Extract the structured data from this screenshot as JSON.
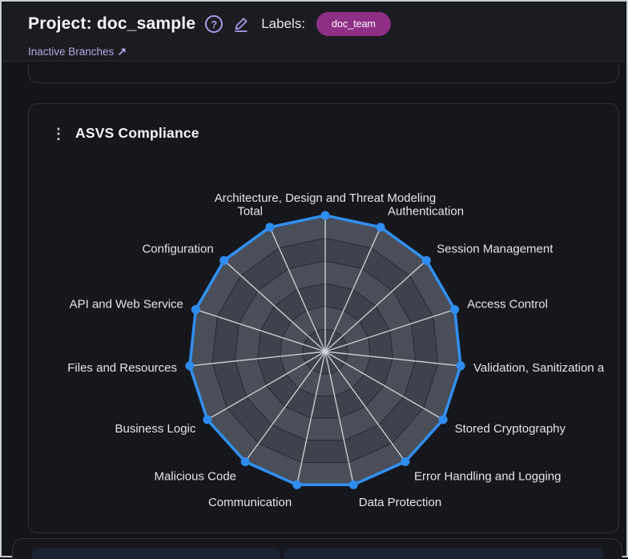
{
  "header": {
    "title": "Project: doc_sample",
    "help_glyph": "?",
    "labels_caption": "Labels:",
    "label_badge": "doc_team",
    "inactive_branches_link": "Inactive Branches",
    "link_arrow": "↗"
  },
  "card": {
    "kebab_glyph": "⋮",
    "title": "ASVS Compliance"
  },
  "chart_data": {
    "type": "radar",
    "title": "ASVS Compliance",
    "categories": [
      "Architecture, Design and Threat Modeling",
      "Authentication",
      "Session Management",
      "Access Control",
      "Validation, Sanitization a",
      "Stored Cryptography",
      "Error Handling and Logging",
      "Data Protection",
      "Communication",
      "Malicious Code",
      "Business Logic",
      "Files and Resources",
      "API and Web Service",
      "Configuration",
      "Total"
    ],
    "series": [
      {
        "name": "ASVS Compliance",
        "values": [
          100,
          100,
          100,
          100,
          100,
          100,
          100,
          100,
          100,
          100,
          100,
          100,
          100,
          100,
          100
        ]
      }
    ],
    "rmax": 100,
    "rings": 6,
    "legend": false,
    "grid": true,
    "colors": {
      "ring_light": "#4a4e59",
      "ring_dark": "#3e424d",
      "ring_stroke": "#252933",
      "spoke": "#caccd2",
      "line": "#3190f0",
      "point": "#2f8cf0",
      "label": "#e4e5e8",
      "badge": "#8f2e85",
      "accent_lavender": "#a59be8"
    }
  }
}
